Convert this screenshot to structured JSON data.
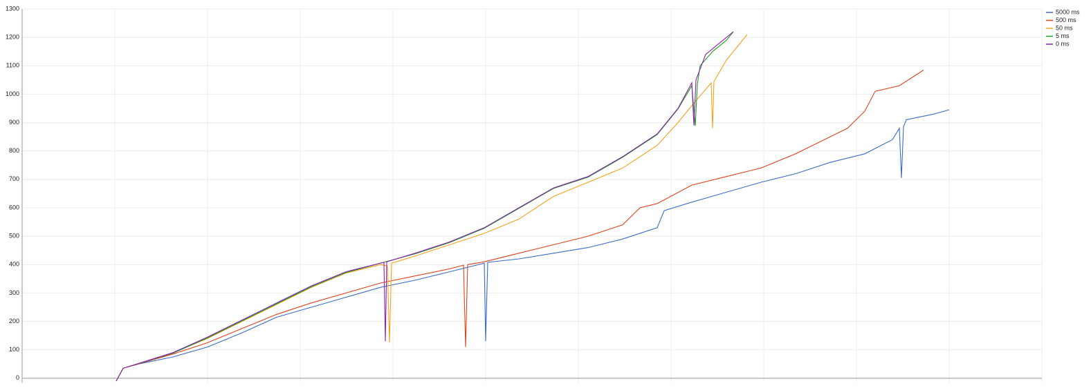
{
  "chart_data": {
    "type": "line",
    "xlim": [
      0,
      1474
    ],
    "xticks": [
      0,
      134,
      268,
      402,
      536,
      670,
      804,
      938,
      1072,
      1206,
      1340,
      1474
    ],
    "ylim": [
      -15,
      1300
    ],
    "yticks": [
      0,
      100,
      200,
      300,
      400,
      500,
      600,
      700,
      800,
      900,
      1000,
      1100,
      1200,
      1300
    ],
    "grid": true,
    "legend": "top-right",
    "series": [
      {
        "name": "5000 ms",
        "color": "#3b6cc8",
        "x": [
          136,
          146,
          168,
          218,
          268,
          318,
          368,
          418,
          468,
          518,
          568,
          618,
          668,
          670,
          673,
          718,
          768,
          818,
          868,
          918,
          928,
          968,
          1018,
          1068,
          1118,
          1168,
          1218,
          1258,
          1268,
          1271,
          1274,
          1278,
          1318,
          1340
        ],
        "values": [
          -10,
          35,
          50,
          75,
          110,
          160,
          215,
          250,
          285,
          320,
          345,
          375,
          405,
          130,
          408,
          420,
          440,
          460,
          490,
          530,
          590,
          620,
          655,
          690,
          720,
          760,
          790,
          840,
          880,
          705,
          885,
          910,
          930,
          945
        ]
      },
      {
        "name": "500 ms",
        "color": "#e0401c",
        "x": [
          136,
          146,
          218,
          268,
          318,
          368,
          418,
          468,
          518,
          568,
          618,
          638,
          641,
          644,
          668,
          718,
          768,
          818,
          868,
          893,
          918,
          968,
          1018,
          1068,
          1118,
          1168,
          1193,
          1218,
          1233,
          1268,
          1303
        ],
        "values": [
          -10,
          35,
          85,
          125,
          175,
          225,
          265,
          300,
          335,
          360,
          385,
          398,
          110,
          400,
          410,
          440,
          470,
          500,
          540,
          600,
          615,
          680,
          710,
          740,
          790,
          850,
          880,
          940,
          1010,
          1030,
          1085
        ]
      },
      {
        "name": "50 ms",
        "color": "#f5a01a",
        "x": [
          136,
          146,
          218,
          268,
          318,
          368,
          418,
          468,
          518,
          528,
          531,
          534,
          568,
          618,
          668,
          718,
          768,
          818,
          868,
          918,
          948,
          968,
          996,
          998,
          1000,
          1018,
          1048
        ],
        "values": [
          -10,
          35,
          90,
          140,
          200,
          260,
          320,
          370,
          400,
          395,
          125,
          405,
          430,
          470,
          510,
          560,
          640,
          690,
          740,
          820,
          900,
          960,
          1040,
          880,
          1045,
          1120,
          1210
        ]
      },
      {
        "name": "5 ms",
        "color": "#1e9e1e",
        "x": [
          136,
          146,
          218,
          268,
          318,
          368,
          418,
          468,
          518,
          568,
          618,
          668,
          718,
          768,
          818,
          868,
          918,
          948,
          968,
          973,
          976,
          980,
          998,
          1018,
          1028
        ],
        "values": [
          -10,
          35,
          88,
          142,
          202,
          262,
          322,
          372,
          405,
          438,
          478,
          528,
          598,
          668,
          708,
          778,
          858,
          948,
          1030,
          888,
          1035,
          1100,
          1150,
          1190,
          1220
        ]
      },
      {
        "name": "0 ms",
        "color": "#8b1fb0",
        "x": [
          136,
          146,
          218,
          268,
          318,
          368,
          418,
          468,
          523,
          525,
          527,
          568,
          618,
          668,
          718,
          768,
          818,
          868,
          918,
          948,
          968,
          971,
          974,
          988,
          1008,
          1028
        ],
        "values": [
          -10,
          35,
          90,
          145,
          205,
          265,
          325,
          375,
          408,
          130,
          410,
          440,
          480,
          530,
          600,
          670,
          710,
          780,
          860,
          950,
          1040,
          890,
          1050,
          1140,
          1180,
          1220
        ]
      }
    ]
  }
}
